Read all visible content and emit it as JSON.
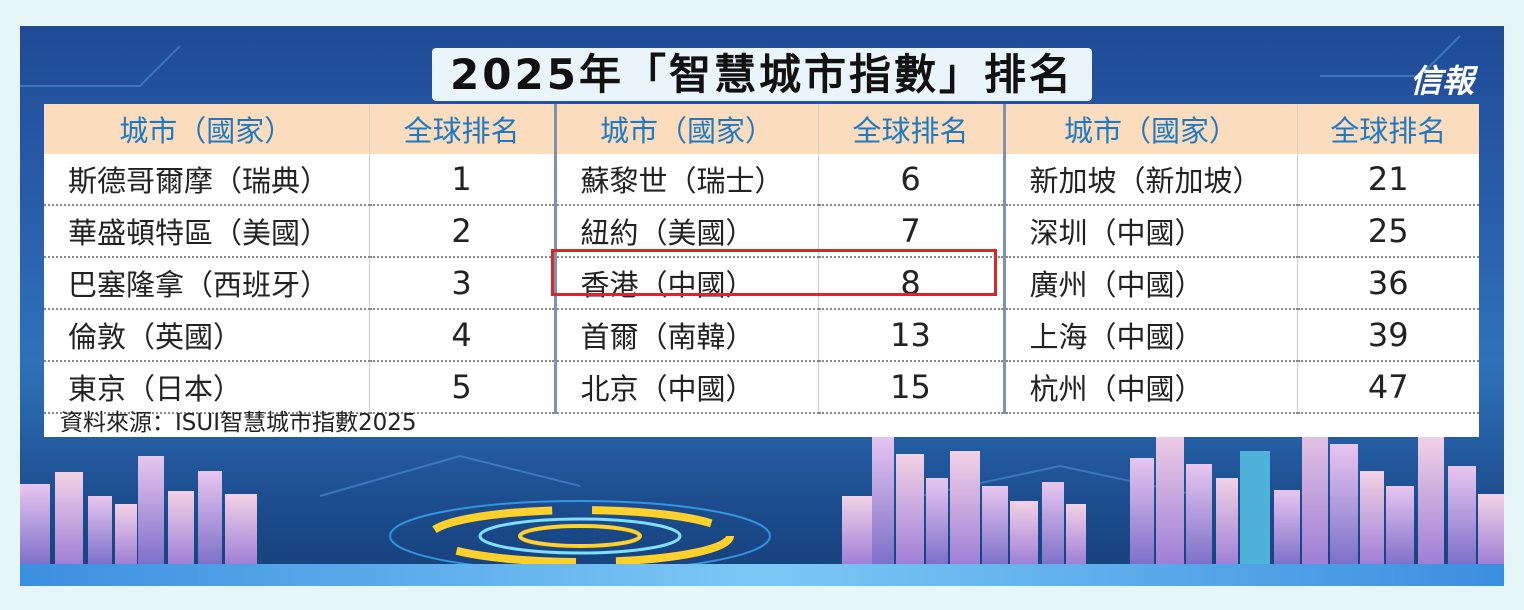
{
  "title": "2025年「智慧城市指數」排名",
  "logo": "信報",
  "headers": [
    "城市（國家）",
    "全球排名",
    "城市（國家）",
    "全球排名",
    "城市（國家）",
    "全球排名"
  ],
  "rows": [
    [
      "斯德哥爾摩（瑞典）",
      "1",
      "蘇黎世（瑞士）",
      "6",
      "新加坡（新加坡）",
      "21"
    ],
    [
      "華盛頓特區（美國）",
      "2",
      "紐約（美國）",
      "7",
      "深圳（中國）",
      "25"
    ],
    [
      "巴塞隆拿（西班牙）",
      "3",
      "香港（中國）",
      "8",
      "廣州（中國）",
      "36"
    ],
    [
      "倫敦（英國）",
      "4",
      "首爾（南韓）",
      "13",
      "上海（中國）",
      "39"
    ],
    [
      "東京（日本）",
      "5",
      "北京（中國）",
      "15",
      "杭州（中國）",
      "47"
    ]
  ],
  "source": "資料來源：ISUI智慧城市指數2025",
  "colors": {
    "header_bg": "#fbdcbd",
    "header_text": "#1f7ac4",
    "highlight": "#d9262a",
    "background": "#2a5fae"
  },
  "highlighted_city": "香港（中國）"
}
